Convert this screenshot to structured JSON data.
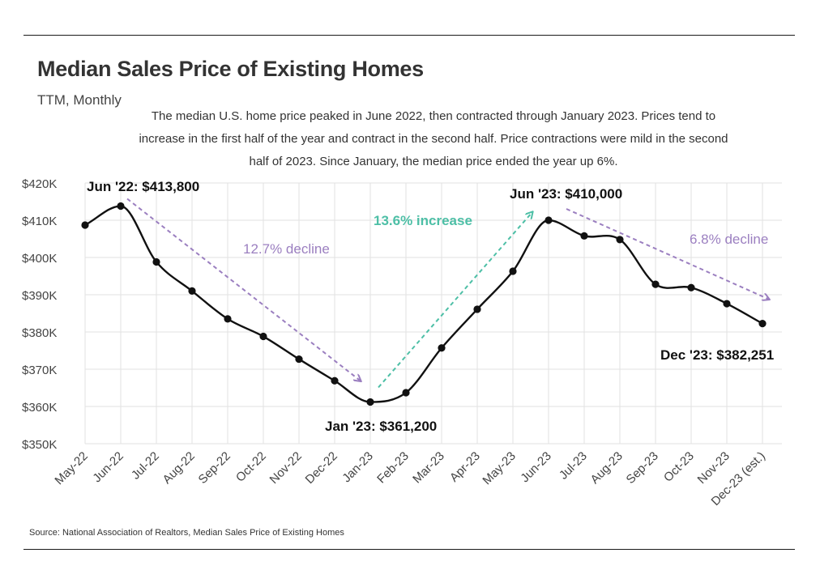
{
  "header": {
    "title": "Median Sales Price of Existing Homes",
    "subtitle": "TTM, Monthly",
    "description": "The median U.S. home price peaked in June 2022, then contracted through January 2023. Prices tend to increase in the first half of the year and contract in the second half. Price contractions were mild in the second half of 2023. Since January, the median price ended the year up 6%."
  },
  "footer": {
    "source": "Source:  National Association of Realtors, Median Sales Price of Existing Homes"
  },
  "colors": {
    "line": "#111111",
    "grid": "#e2e2e2",
    "decline": "#9b7fc0",
    "increase": "#4dbfa6"
  },
  "chart_data": {
    "type": "line",
    "title": "Median Sales Price of Existing Homes",
    "xlabel": "",
    "ylabel": "",
    "grid": true,
    "ylim": [
      350000,
      420000
    ],
    "y_ticks": [
      350000,
      360000,
      370000,
      380000,
      390000,
      400000,
      410000,
      420000
    ],
    "y_tick_labels": [
      "$350K",
      "$360K",
      "$370K",
      "$380K",
      "$390K",
      "$400K",
      "$410K",
      "$420K"
    ],
    "categories": [
      "May-22",
      "Jun-22",
      "Jul-22",
      "Aug-22",
      "Sep-22",
      "Oct-22",
      "Nov-22",
      "Dec-22",
      "Jan-23",
      "Feb-23",
      "Mar-23",
      "Apr-23",
      "May-23",
      "Jun-23",
      "Jul-23",
      "Aug-23",
      "Sep-23",
      "Oct-23",
      "Nov-23",
      "Dec-23 (est.)"
    ],
    "series": [
      {
        "name": "Median Sales Price",
        "values": [
          408700,
          413800,
          398800,
          391000,
          383500,
          378800,
          372700,
          366900,
          361200,
          363700,
          375700,
          386100,
          396300,
          410000,
          405800,
          404800,
          392800,
          391900,
          387600,
          382251
        ]
      }
    ],
    "annotations": {
      "peak_2022": "Jun '22: $413,800",
      "trough_2023": "Jan '23: $361,200",
      "peak_2023": "Jun '23: $410,000",
      "end_2023": "Dec '23: $382,251",
      "decline_1": "12.7% decline",
      "increase_1": "13.6% increase",
      "decline_2": "6.8% decline"
    }
  }
}
